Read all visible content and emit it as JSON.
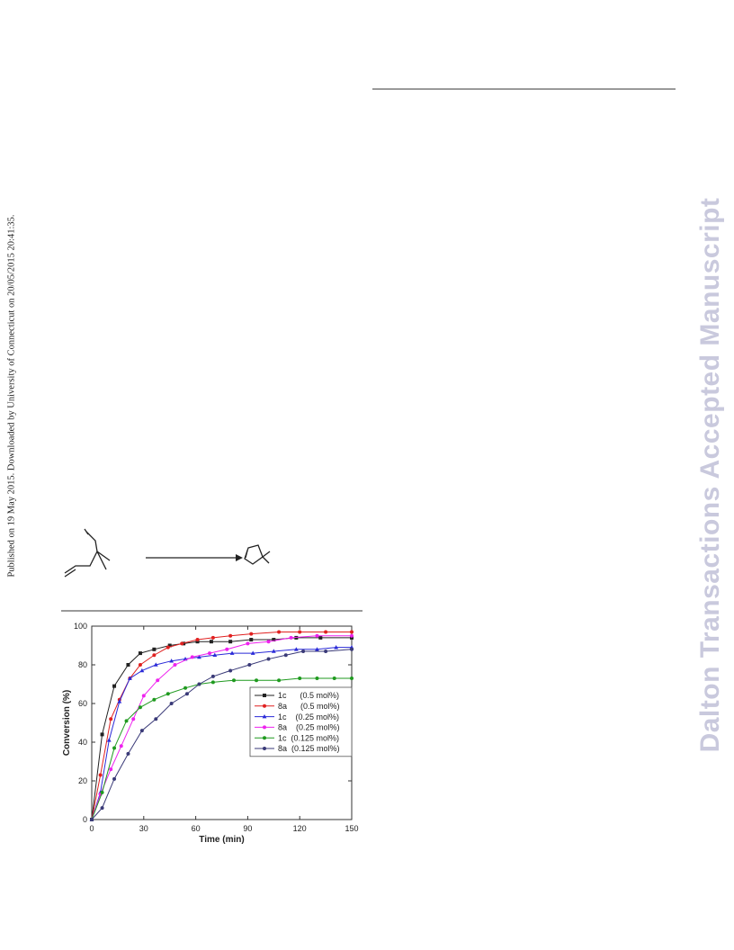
{
  "header": {
    "published_note": "Published on 19 May 2015. Downloaded by University of Connecticut on 20/05/2015 20:41:35."
  },
  "watermark": {
    "text": "Dalton Transactions Accepted Manuscript"
  },
  "scheme": {
    "description_icon": "diene-to-cyclopentene-reaction-icon"
  },
  "chart_data": {
    "type": "line",
    "title": "",
    "xlabel": "Time (min)",
    "ylabel": "Conversion (%)",
    "xlim": [
      0,
      150
    ],
    "ylim": [
      0,
      100
    ],
    "xticks": [
      0,
      30,
      60,
      90,
      120,
      150
    ],
    "yticks": [
      0,
      20,
      40,
      60,
      80,
      100
    ],
    "grid": false,
    "legend_position": "center-right",
    "series": [
      {
        "name": "1c      (0.5 mol%)",
        "color": "#222222",
        "marker": "square",
        "points": [
          [
            0,
            0
          ],
          [
            6,
            44
          ],
          [
            13,
            69
          ],
          [
            21,
            80
          ],
          [
            28,
            86
          ],
          [
            36,
            88
          ],
          [
            45,
            90
          ],
          [
            53,
            91
          ],
          [
            61,
            92
          ],
          [
            69,
            92
          ],
          [
            80,
            92
          ],
          [
            92,
            93
          ],
          [
            105,
            93
          ],
          [
            118,
            94
          ],
          [
            132,
            94
          ],
          [
            150,
            94
          ]
        ]
      },
      {
        "name": "8a      (0.5 mol%)",
        "color": "#e02020",
        "marker": "circle",
        "points": [
          [
            0,
            0
          ],
          [
            5,
            23
          ],
          [
            11,
            52
          ],
          [
            16,
            62
          ],
          [
            22,
            73
          ],
          [
            28,
            80
          ],
          [
            36,
            85
          ],
          [
            44,
            89
          ],
          [
            52,
            91
          ],
          [
            61,
            93
          ],
          [
            70,
            94
          ],
          [
            80,
            95
          ],
          [
            92,
            96
          ],
          [
            108,
            97
          ],
          [
            120,
            97
          ],
          [
            135,
            97
          ],
          [
            150,
            97
          ]
        ]
      },
      {
        "name": "1c    (0.25 mol%)",
        "color": "#2a2ad8",
        "marker": "triangle",
        "points": [
          [
            0,
            0
          ],
          [
            5,
            14
          ],
          [
            10,
            41
          ],
          [
            16,
            61
          ],
          [
            22,
            73
          ],
          [
            29,
            77
          ],
          [
            37,
            80
          ],
          [
            46,
            82
          ],
          [
            54,
            83
          ],
          [
            62,
            84
          ],
          [
            71,
            85
          ],
          [
            81,
            86
          ],
          [
            93,
            86
          ],
          [
            105,
            87
          ],
          [
            118,
            88
          ],
          [
            130,
            88
          ],
          [
            141,
            89
          ],
          [
            150,
            89
          ]
        ]
      },
      {
        "name": "8a    (0.25 mol%)",
        "color": "#ee22ee",
        "marker": "circle",
        "points": [
          [
            0,
            0
          ],
          [
            5,
            13
          ],
          [
            11,
            26
          ],
          [
            17,
            38
          ],
          [
            24,
            52
          ],
          [
            30,
            64
          ],
          [
            38,
            72
          ],
          [
            48,
            80
          ],
          [
            58,
            84
          ],
          [
            68,
            86
          ],
          [
            78,
            88
          ],
          [
            90,
            91
          ],
          [
            102,
            92
          ],
          [
            115,
            94
          ],
          [
            130,
            95
          ],
          [
            150,
            95
          ]
        ]
      },
      {
        "name": "1c  (0.125 mol%)",
        "color": "#1f9a1f",
        "marker": "circle",
        "points": [
          [
            0,
            0
          ],
          [
            6,
            14
          ],
          [
            13,
            37
          ],
          [
            20,
            51
          ],
          [
            28,
            58
          ],
          [
            36,
            62
          ],
          [
            44,
            65
          ],
          [
            54,
            68
          ],
          [
            62,
            70
          ],
          [
            70,
            71
          ],
          [
            82,
            72
          ],
          [
            95,
            72
          ],
          [
            108,
            72
          ],
          [
            120,
            73
          ],
          [
            130,
            73
          ],
          [
            140,
            73
          ],
          [
            150,
            73
          ]
        ]
      },
      {
        "name": "8a  (0.125 mol%)",
        "color": "#3a3a78",
        "marker": "circle",
        "points": [
          [
            0,
            0
          ],
          [
            6,
            6
          ],
          [
            13,
            21
          ],
          [
            21,
            34
          ],
          [
            29,
            46
          ],
          [
            37,
            52
          ],
          [
            46,
            60
          ],
          [
            55,
            65
          ],
          [
            62,
            70
          ],
          [
            70,
            74
          ],
          [
            80,
            77
          ],
          [
            91,
            80
          ],
          [
            102,
            83
          ],
          [
            112,
            85
          ],
          [
            122,
            87
          ],
          [
            135,
            87
          ],
          [
            150,
            88
          ]
        ]
      }
    ]
  }
}
